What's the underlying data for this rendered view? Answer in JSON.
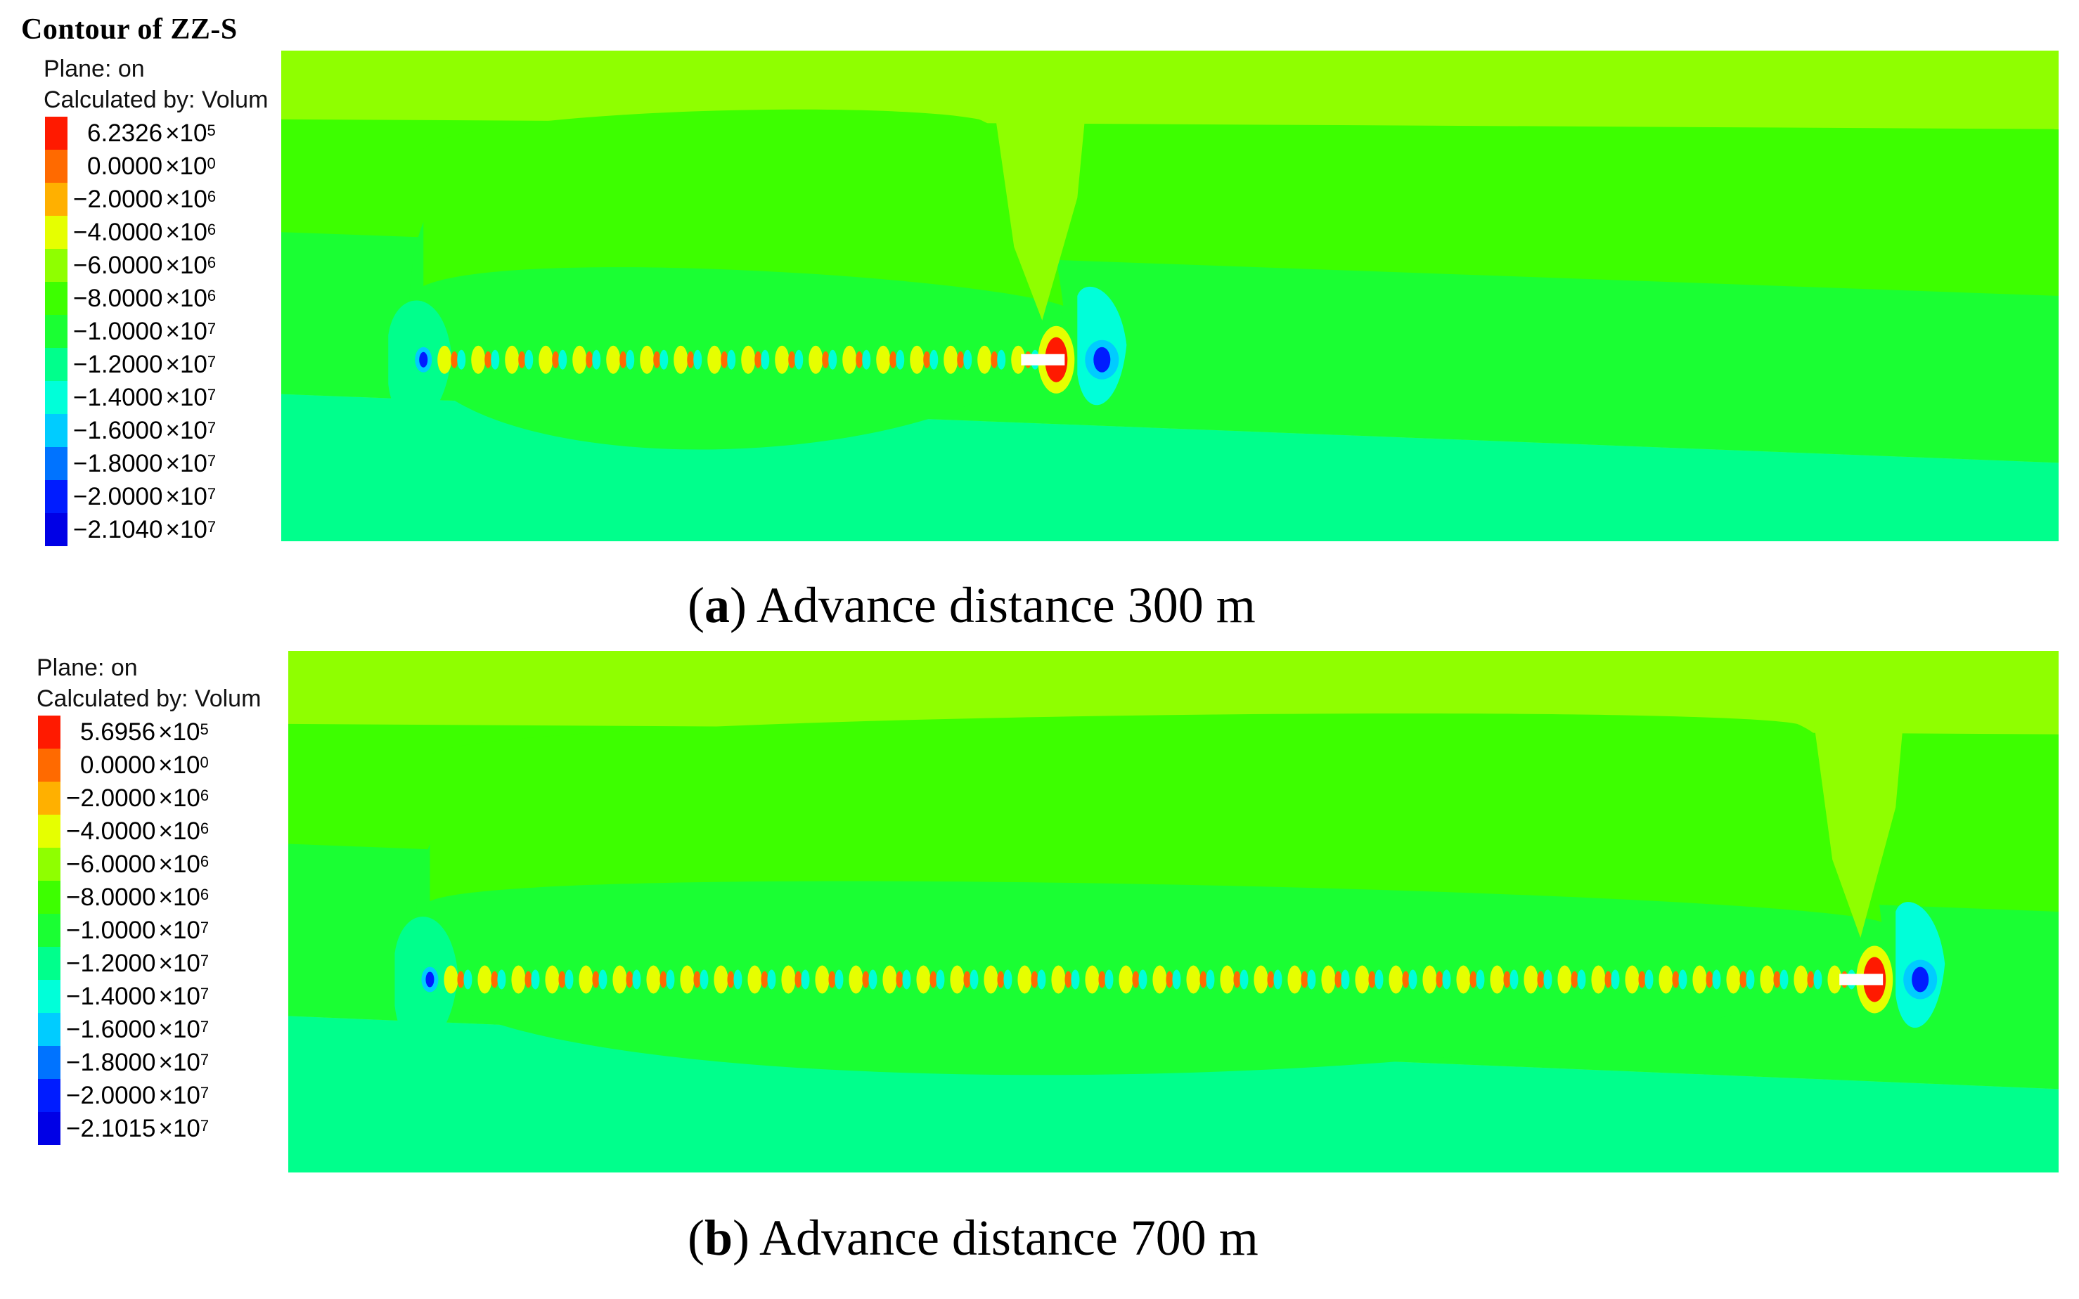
{
  "figure": {
    "contour_title": "Contour of ZZ-S",
    "panels": [
      {
        "id": "a",
        "plane_label": "Plane: on",
        "calc_label": "Calculated by: Volum",
        "legend": [
          {
            "mantissa": "6.2326",
            "base": "×10",
            "exp": "5",
            "color": "#ff1a00"
          },
          {
            "mantissa": "0.0000",
            "base": "×10",
            "exp": "0",
            "color": "#ff6a00"
          },
          {
            "mantissa": "−2.0000",
            "base": "×10",
            "exp": "6",
            "color": "#ffb000"
          },
          {
            "mantissa": "−4.0000",
            "base": "×10",
            "exp": "6",
            "color": "#e6ff00"
          },
          {
            "mantissa": "−6.0000",
            "base": "×10",
            "exp": "6",
            "color": "#8fff00"
          },
          {
            "mantissa": "−8.0000",
            "base": "×10",
            "exp": "6",
            "color": "#3dff00"
          },
          {
            "mantissa": "−1.0000",
            "base": "×10",
            "exp": "7",
            "color": "#1aff33"
          },
          {
            "mantissa": "−1.2000",
            "base": "×10",
            "exp": "7",
            "color": "#00ff8c"
          },
          {
            "mantissa": "−1.4000",
            "base": "×10",
            "exp": "7",
            "color": "#00ffd9"
          },
          {
            "mantissa": "−1.6000",
            "base": "×10",
            "exp": "7",
            "color": "#00ccff"
          },
          {
            "mantissa": "−1.8000",
            "base": "×10",
            "exp": "7",
            "color": "#0073ff"
          },
          {
            "mantissa": "−2.0000",
            "base": "×10",
            "exp": "7",
            "color": "#001cff"
          },
          {
            "mantissa": "−2.1040",
            "base": "×10",
            "exp": "7",
            "color": "#0000e6"
          }
        ],
        "caption_letter": "a",
        "caption_text": " Advance distance 300 m",
        "face_position": 0.44
      },
      {
        "id": "b",
        "plane_label": "Plane: on",
        "calc_label": "Calculated by: Volum",
        "legend": [
          {
            "mantissa": "5.6956",
            "base": "×10",
            "exp": "5",
            "color": "#ff1a00"
          },
          {
            "mantissa": "0.0000",
            "base": "×10",
            "exp": "0",
            "color": "#ff6a00"
          },
          {
            "mantissa": "−2.0000",
            "base": "×10",
            "exp": "6",
            "color": "#ffb000"
          },
          {
            "mantissa": "−4.0000",
            "base": "×10",
            "exp": "6",
            "color": "#e6ff00"
          },
          {
            "mantissa": "−6.0000",
            "base": "×10",
            "exp": "6",
            "color": "#8fff00"
          },
          {
            "mantissa": "−8.0000",
            "base": "×10",
            "exp": "6",
            "color": "#3dff00"
          },
          {
            "mantissa": "−1.0000",
            "base": "×10",
            "exp": "7",
            "color": "#1aff33"
          },
          {
            "mantissa": "−1.2000",
            "base": "×10",
            "exp": "7",
            "color": "#00ff8c"
          },
          {
            "mantissa": "−1.4000",
            "base": "×10",
            "exp": "7",
            "color": "#00ffd9"
          },
          {
            "mantissa": "−1.6000",
            "base": "×10",
            "exp": "7",
            "color": "#00ccff"
          },
          {
            "mantissa": "−1.8000",
            "base": "×10",
            "exp": "7",
            "color": "#0073ff"
          },
          {
            "mantissa": "−2.0000",
            "base": "×10",
            "exp": "7",
            "color": "#001cff"
          },
          {
            "mantissa": "−2.1015",
            "base": "×10",
            "exp": "7",
            "color": "#0000e6"
          }
        ],
        "caption_letter": "b",
        "caption_text": " Advance distance 700 m",
        "face_position": 0.9
      }
    ]
  }
}
